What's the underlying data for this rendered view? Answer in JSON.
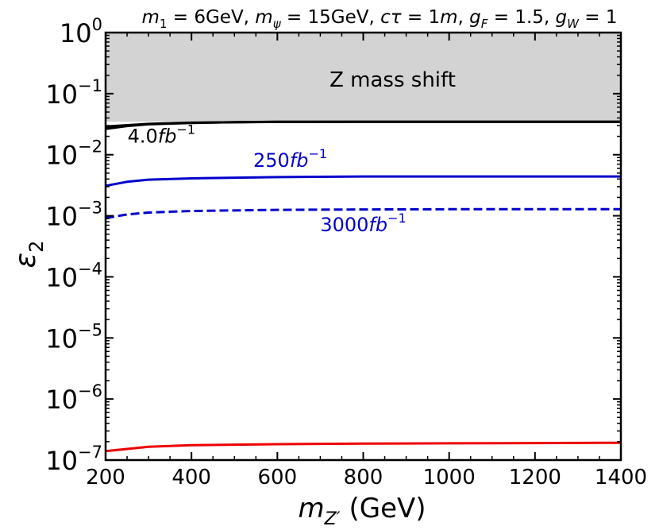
{
  "chart_data": {
    "type": "line",
    "title_parts": {
      "m1": "m",
      "m1_sub": "1",
      "m1_val": " = 6GeV, ",
      "mpsi": "m",
      "mpsi_sub": "ψ",
      "mpsi_val": " = 15GeV, ",
      "ctau": "cτ",
      "ctau_val": " = 1",
      "ctau_unit": "m",
      "sep": ", ",
      "gF": "g",
      "gF_sub": "F",
      "gF_val": " = 1.5, ",
      "gW": "g",
      "gW_sub": "W",
      "gW_val": " = 1"
    },
    "xlabel": {
      "m": "m",
      "sub": "Z′",
      "unit": " (GeV)"
    },
    "ylabel": {
      "symbol": "ε",
      "sub": "2"
    },
    "xlim": [
      200,
      1400
    ],
    "ylim_log10": [
      -7,
      0
    ],
    "x_ticks": [
      200,
      400,
      600,
      800,
      1000,
      1200,
      1400
    ],
    "y_tick_exponents": [
      0,
      -1,
      -2,
      -3,
      -4,
      -5,
      -6,
      -7
    ],
    "y_tick_base": "10",
    "excluded_region": {
      "label": "Z mass shift",
      "color": "#d3d3d3",
      "y_low": 0.0347,
      "y_high": 1
    },
    "series": [
      {
        "name": "4.0fb-1 upper",
        "color": "#000000",
        "dash": false,
        "x": [
          200,
          300,
          400,
          600,
          800,
          1000,
          1200,
          1400
        ],
        "y": [
          0.029,
          0.032,
          0.0335,
          0.0345,
          0.0347,
          0.0347,
          0.0347,
          0.0347
        ]
      },
      {
        "name": "4.0fb-1 lower",
        "color": "#000000",
        "dash": false,
        "x": [
          200,
          250,
          300,
          400,
          500,
          600,
          800,
          1000,
          1200,
          1400
        ],
        "y": [
          0.0265,
          0.0295,
          0.0315,
          0.0332,
          0.0342,
          0.0346,
          0.0347,
          0.0347,
          0.0347,
          0.0347
        ]
      },
      {
        "name": "250fb-1",
        "color": "#0000cc",
        "dash": false,
        "x": [
          200,
          250,
          300,
          400,
          600,
          800,
          1000,
          1200,
          1400
        ],
        "y": [
          0.0031,
          0.0036,
          0.0039,
          0.0041,
          0.0043,
          0.0044,
          0.0044,
          0.0044,
          0.0044
        ]
      },
      {
        "name": "3000fb-1",
        "color": "#0000cc",
        "dash": true,
        "x": [
          200,
          250,
          300,
          400,
          600,
          800,
          1000,
          1200,
          1400
        ],
        "y": [
          0.00092,
          0.00105,
          0.00113,
          0.0012,
          0.00125,
          0.00127,
          0.00128,
          0.00128,
          0.00128
        ]
      },
      {
        "name": "red",
        "color": "#ee0000",
        "dash": false,
        "x": [
          200,
          300,
          400,
          600,
          800,
          1000,
          1200,
          1400
        ],
        "y": [
          1.4e-07,
          1.65e-07,
          1.75e-07,
          1.82e-07,
          1.86e-07,
          1.88e-07,
          1.9e-07,
          1.92e-07
        ]
      }
    ],
    "annotations": [
      {
        "prefix": "4.0",
        "italic": "fb",
        "sup": "−1",
        "color": "#000000",
        "x": 330,
        "y": 0.0158
      },
      {
        "prefix": "250",
        "italic": "fb",
        "sup": "−1",
        "color": "#0000cc",
        "x": 630,
        "y": 0.0063
      },
      {
        "prefix": "3000",
        "italic": "fb",
        "sup": "−1",
        "color": "#0000cc",
        "x": 800,
        "y": 0.00056
      }
    ]
  }
}
